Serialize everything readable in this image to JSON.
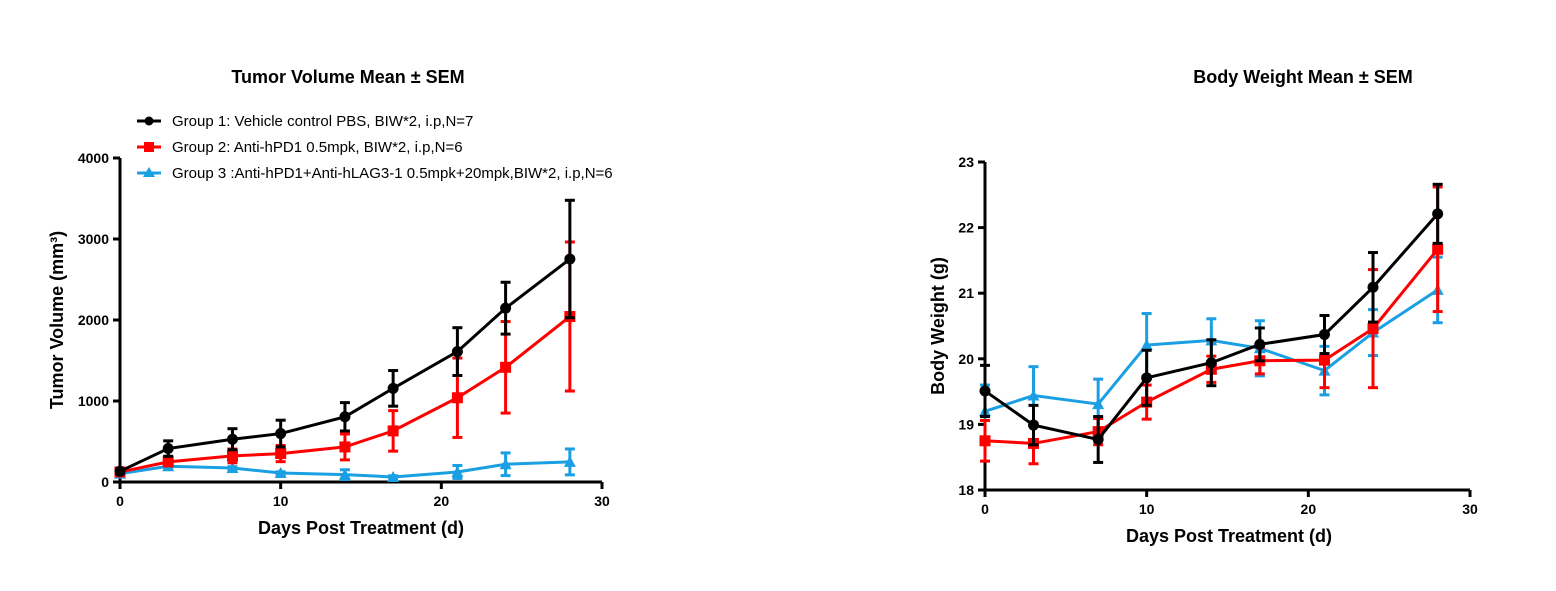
{
  "colors": {
    "group1": "#000000",
    "group2": "#ff0000",
    "group3": "#1a9fe3"
  },
  "chart_data": [
    {
      "type": "line",
      "title": "Tumor Volume Mean ± SEM",
      "xlabel": "Days Post Treatment (d)",
      "ylabel": "Tumor Volume (mm³)",
      "xlim": [
        0,
        30
      ],
      "ylim": [
        0,
        4000
      ],
      "xticks": [
        0,
        10,
        20,
        30
      ],
      "yticks": [
        0,
        1000,
        2000,
        3000,
        4000
      ],
      "grid": false,
      "legend": "top",
      "error_bars": "SEM",
      "x": [
        0,
        3,
        7,
        10,
        14,
        17,
        21,
        24,
        28
      ],
      "series": [
        {
          "name": "Group 1: Vehicle control PBS, BIW*2, i.p,N=7",
          "marker": "circle",
          "color": "#000000",
          "values": [
            132,
            413,
            528,
            598,
            805,
            1156,
            1610,
            2146,
            2753
          ],
          "errors": [
            25,
            95,
            130,
            165,
            175,
            220,
            295,
            320,
            725
          ]
        },
        {
          "name": "Group 2: Anti-hPD1 0.5mpk, BIW*2, i.p,N=6",
          "marker": "square",
          "color": "#ff0000",
          "values": [
            124,
            248,
            322,
            351,
            433,
            631,
            1040,
            1416,
            2043
          ],
          "errors": [
            20,
            45,
            85,
            100,
            160,
            250,
            490,
            565,
            920
          ]
        },
        {
          "name": "Group 3 :Anti-hPD1+Anti-hLAG3-1 0.5mpk+20mpk,BIW*2, i.p,N=6",
          "marker": "triangle",
          "color": "#1a9fe3",
          "values": [
            103,
            194,
            173,
            111,
            91,
            62,
            124,
            219,
            248
          ],
          "errors": [
            10,
            25,
            15,
            15,
            60,
            15,
            80,
            140,
            160
          ]
        }
      ]
    },
    {
      "type": "line",
      "title": "Body Weight  Mean ± SEM",
      "xlabel": "Days Post Treatment (d)",
      "ylabel": "Body Weight (g)",
      "xlim": [
        0,
        30
      ],
      "ylim": [
        18,
        23
      ],
      "xticks": [
        0,
        10,
        20,
        30
      ],
      "yticks": [
        18,
        19,
        20,
        21,
        22,
        23
      ],
      "grid": false,
      "error_bars": "SEM",
      "x": [
        0,
        3,
        7,
        10,
        14,
        17,
        21,
        24,
        28
      ],
      "series": [
        {
          "marker": "circle",
          "color": "#000000",
          "values": [
            19.51,
            18.99,
            18.77,
            19.71,
            19.94,
            20.22,
            20.37,
            21.09,
            22.21
          ],
          "errors": [
            0.39,
            0.3,
            0.35,
            0.42,
            0.35,
            0.25,
            0.29,
            0.53,
            0.45
          ]
        },
        {
          "marker": "square",
          "color": "#ff0000",
          "values": [
            18.75,
            18.71,
            18.89,
            19.34,
            19.84,
            19.97,
            19.98,
            20.46,
            21.67
          ],
          "errors": [
            0.31,
            0.31,
            0.2,
            0.26,
            0.2,
            0.2,
            0.42,
            0.9,
            0.95
          ]
        },
        {
          "marker": "triangle",
          "color": "#1a9fe3",
          "values": [
            19.2,
            19.44,
            19.31,
            20.21,
            20.28,
            20.16,
            19.82,
            20.4,
            21.05
          ],
          "errors": [
            0.4,
            0.44,
            0.38,
            0.48,
            0.33,
            0.42,
            0.37,
            0.35,
            0.5
          ]
        }
      ]
    }
  ]
}
